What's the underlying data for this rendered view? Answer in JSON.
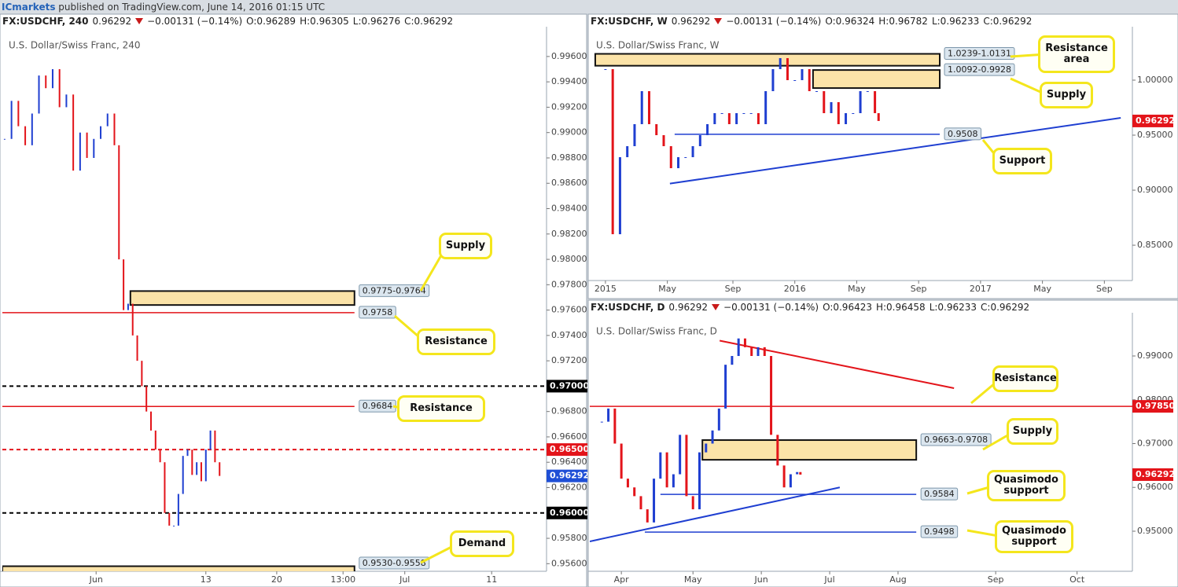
{
  "header": {
    "brand": "ICmarkets",
    "text": "published on TradingView.com, June 14, 2016 01:15 UTC"
  },
  "chart_data": [
    {
      "type": "candlestick",
      "symbol": "FX:USDCHF, 240",
      "last": "0.96292",
      "change": "−0.00131 (−0.14%)",
      "ohlc": [
        "O:0.96289",
        "H:0.96305",
        "L:0.96276",
        "C:0.96292"
      ],
      "title": "U.S. Dollar/Swiss Franc, 240",
      "up_color": "#1f3fd1",
      "down_color": "#e3141a",
      "x": [
        -40,
        -37,
        -34,
        -31,
        -28,
        -25,
        -22,
        -19,
        -16,
        -13,
        -10,
        -7,
        -4,
        -1,
        2,
        5,
        8,
        10,
        12,
        14,
        16,
        18,
        20,
        22,
        24,
        26,
        28,
        30,
        32,
        34,
        36,
        38,
        40,
        42,
        44,
        46,
        48,
        50,
        52,
        54
      ],
      "values": [
        0.9895,
        0.9925,
        0.9905,
        0.989,
        0.9915,
        0.9945,
        0.9935,
        0.995,
        0.992,
        0.993,
        0.987,
        0.99,
        0.988,
        0.9895,
        0.9905,
        0.9915,
        0.989,
        0.98,
        0.976,
        0.9765,
        0.974,
        0.972,
        0.97,
        0.968,
        0.9665,
        0.965,
        0.964,
        0.96,
        0.959,
        0.959,
        0.9615,
        0.9645,
        0.965,
        0.963,
        0.964,
        0.9625,
        0.965,
        0.9665,
        0.964,
        0.96292
      ],
      "xlim": [
        -41,
        197
      ],
      "ylim": [
        0.9554,
        0.9981
      ],
      "xticks": [
        {
          "value": 0,
          "label": "Jun"
        },
        {
          "value": 48,
          "label": "13"
        },
        {
          "value": 79,
          "label": "20"
        },
        {
          "value": 108,
          "label": "13:00"
        },
        {
          "value": 135,
          "label": "Jul"
        },
        {
          "value": 173,
          "label": "11"
        }
      ],
      "yticks": [
        {
          "value": 0.996,
          "label": "0.99600"
        },
        {
          "value": 0.994,
          "label": "0.99400"
        },
        {
          "value": 0.992,
          "label": "0.99200"
        },
        {
          "value": 0.99,
          "label": "0.99000"
        },
        {
          "value": 0.988,
          "label": "0.98800"
        },
        {
          "value": 0.986,
          "label": "0.98600"
        },
        {
          "value": 0.984,
          "label": "0.98400"
        },
        {
          "value": 0.982,
          "label": "0.98200"
        },
        {
          "value": 0.98,
          "label": "0.98000"
        },
        {
          "value": 0.978,
          "label": "0.97800"
        },
        {
          "value": 0.976,
          "label": "0.97600"
        },
        {
          "value": 0.974,
          "label": "0.97400"
        },
        {
          "value": 0.972,
          "label": "0.97200"
        },
        {
          "value": 0.97,
          "label": "0.97000"
        },
        {
          "value": 0.968,
          "label": "0.96800"
        },
        {
          "value": 0.966,
          "label": "0.96600"
        },
        {
          "value": 0.964,
          "label": "0.96400"
        },
        {
          "value": 0.962,
          "label": "0.96200"
        },
        {
          "value": 0.96,
          "label": "0.96000"
        },
        {
          "value": 0.958,
          "label": "0.95800"
        },
        {
          "value": 0.956,
          "label": "0.95600"
        }
      ],
      "zones": [
        {
          "top": 0.9775,
          "bottom": 0.9764,
          "x": [
            15,
            113
          ],
          "label": "0.9775-0.9764",
          "callout": "Supply"
        },
        {
          "top": 0.9558,
          "bottom": 0.953,
          "x": [
            -41,
            113
          ],
          "label": "0.9530-0.9558",
          "callout": "Demand"
        }
      ],
      "levels": [
        {
          "value": 0.9758,
          "x": [
            -41,
            113
          ],
          "color": "#e3141a",
          "dashed": false,
          "label": "0.9758",
          "callout": "Resistance"
        },
        {
          "value": 0.97,
          "color": "#000000",
          "dashed": true,
          "label": "0.97000"
        },
        {
          "value": 0.9684,
          "x": [
            -41,
            113
          ],
          "color": "#e3141a",
          "dashed": false,
          "label": "0.9684",
          "callout": "Resistance"
        },
        {
          "value": 0.965,
          "color": "#e3141a",
          "dashed": true,
          "label": "0.96500"
        },
        {
          "value": 0.96,
          "color": "#000000",
          "dashed": true,
          "label": "0.96000"
        }
      ],
      "trendlines": [],
      "price_tag": 0.96292,
      "price_tag_color": "#1f4fd6"
    },
    {
      "type": "candlestick",
      "symbol": "FX:USDCHF, W",
      "last": "0.96292",
      "change": "−0.00131 (−0.14%)",
      "ohlc": [
        "O:0.96324",
        "H:0.96782",
        "L:0.96233",
        "C:0.96292"
      ],
      "title": "U.S. Dollar/Swiss Franc, W",
      "up_color": "#1f3fd1",
      "down_color": "#e3141a",
      "x": [
        0,
        2,
        4,
        6,
        8,
        10,
        12,
        14,
        16,
        18,
        20,
        22,
        24,
        26,
        28,
        30,
        32,
        34,
        36,
        38,
        40,
        42,
        44,
        46,
        48,
        50,
        52,
        54,
        56,
        58,
        60,
        62,
        64,
        66,
        68,
        70,
        72,
        74,
        75
      ],
      "values": [
        1.01,
        0.86,
        0.93,
        0.94,
        0.96,
        0.99,
        0.96,
        0.95,
        0.94,
        0.92,
        0.93,
        0.93,
        0.94,
        0.95,
        0.96,
        0.97,
        0.97,
        0.96,
        0.97,
        0.97,
        0.97,
        0.96,
        0.99,
        1.01,
        1.02,
        1.0,
        1.0,
        1.01,
        0.99,
        0.99,
        0.97,
        0.98,
        0.96,
        0.97,
        0.97,
        0.99,
        0.99,
        0.97,
        0.96292
      ],
      "xlim": [
        -4.3,
        144.7
      ],
      "ylim": [
        0.8179,
        1.0457
      ],
      "xticks": [
        {
          "value": 0,
          "label": "2015"
        },
        {
          "value": 17,
          "label": "May"
        },
        {
          "value": 35,
          "label": "Sep"
        },
        {
          "value": 52,
          "label": "2016"
        },
        {
          "value": 69,
          "label": "May"
        },
        {
          "value": 86,
          "label": "Sep"
        },
        {
          "value": 103,
          "label": "2017"
        },
        {
          "value": 120,
          "label": "May"
        },
        {
          "value": 137,
          "label": "Sep"
        }
      ],
      "yticks": [
        {
          "value": 1.0,
          "label": "1.00000"
        },
        {
          "value": 0.95,
          "label": "0.95000"
        },
        {
          "value": 0.9,
          "label": "0.90000"
        },
        {
          "value": 0.85,
          "label": "0.85000"
        }
      ],
      "zones": [
        {
          "top": 1.0239,
          "bottom": 1.0131,
          "x": [
            -2.8,
            91.8
          ],
          "label": "1.0239-1.0131",
          "callout": "Resistance area"
        },
        {
          "top": 1.0092,
          "bottom": 0.9928,
          "x": [
            57,
            91.8
          ],
          "label": "1.0092-0.9928",
          "callout": "Supply"
        }
      ],
      "levels": [
        {
          "value": 0.9508,
          "x": [
            19,
            91.8
          ],
          "color": "#1f3fd1",
          "dashed": false,
          "label": "0.9508",
          "callout": "Support"
        }
      ],
      "trendlines": [
        {
          "x": [
            17.7,
            141.5
          ],
          "values": [
            0.906,
            0.9657
          ],
          "color": "#1f3fd1"
        }
      ],
      "price_tag": 0.96292,
      "price_tag_color": "#e3141a"
    },
    {
      "type": "candlestick",
      "symbol": "FX:USDCHF, D",
      "last": "0.96292",
      "change": "−0.00131 (−0.14%)",
      "ohlc": [
        "O:0.96423",
        "H:0.96458",
        "L:0.96233",
        "C:0.96292"
      ],
      "title": "U.S. Dollar/Swiss Franc, D",
      "up_color": "#1f3fd1",
      "down_color": "#e3141a",
      "x": [
        -6,
        -4,
        -2,
        0,
        2,
        4,
        6,
        8,
        10,
        12,
        14,
        16,
        18,
        20,
        22,
        24,
        26,
        28,
        30,
        32,
        34,
        36,
        38,
        40,
        42,
        44,
        46,
        48,
        50,
        52,
        54,
        55
      ],
      "values": [
        0.975,
        0.978,
        0.97,
        0.962,
        0.96,
        0.958,
        0.955,
        0.952,
        0.962,
        0.968,
        0.96,
        0.963,
        0.972,
        0.958,
        0.955,
        0.968,
        0.97,
        0.973,
        0.978,
        0.988,
        0.99,
        0.994,
        0.992,
        0.99,
        0.992,
        0.99,
        0.972,
        0.965,
        0.96,
        0.963,
        0.9635,
        0.96292
      ],
      "xlim": [
        -9.7,
        157
      ],
      "ylim": [
        0.94085,
        0.99915
      ],
      "xticks": [
        {
          "value": 0,
          "label": "Apr"
        },
        {
          "value": 22,
          "label": "May"
        },
        {
          "value": 43,
          "label": "Jun"
        },
        {
          "value": 64,
          "label": "Jul"
        },
        {
          "value": 85,
          "label": "Aug"
        },
        {
          "value": 115,
          "label": "Sep"
        },
        {
          "value": 140,
          "label": "Oct"
        }
      ],
      "yticks": [
        {
          "value": 0.99,
          "label": "0.99000"
        },
        {
          "value": 0.98,
          "label": "0.98000"
        },
        {
          "value": 0.97,
          "label": "0.97000"
        },
        {
          "value": 0.96,
          "label": "0.96000"
        },
        {
          "value": 0.95,
          "label": "0.95000"
        }
      ],
      "zones": [
        {
          "top": 0.9708,
          "bottom": 0.9663,
          "x": [
            24.9,
            90.6
          ],
          "label": "0.9663-0.9708",
          "callout": "Supply"
        }
      ],
      "levels": [
        {
          "value": 0.9785,
          "color": "#e3141a",
          "dashed": false,
          "label": "0.97850",
          "callout": "Resistance"
        },
        {
          "value": 0.9584,
          "x": [
            12,
            90.6
          ],
          "color": "#1f3fd1",
          "dashed": false,
          "label": "0.9584",
          "callout": "Quasimodo support"
        },
        {
          "value": 0.9498,
          "x": [
            7.2,
            90.6
          ],
          "color": "#1f3fd1",
          "dashed": false,
          "label": "0.9498",
          "callout": "Quasimodo support"
        }
      ],
      "trendlines": [
        {
          "x": [
            30.2,
            102.2
          ],
          "values": [
            0.9935,
            0.98265
          ],
          "color": "#e3141a"
        },
        {
          "x": [
            -9.7,
            67.1
          ],
          "values": [
            0.94767,
            0.96
          ],
          "color": "#1f3fd1"
        }
      ],
      "price_tag": 0.96292,
      "price_tag_color": "#e3141a"
    }
  ]
}
